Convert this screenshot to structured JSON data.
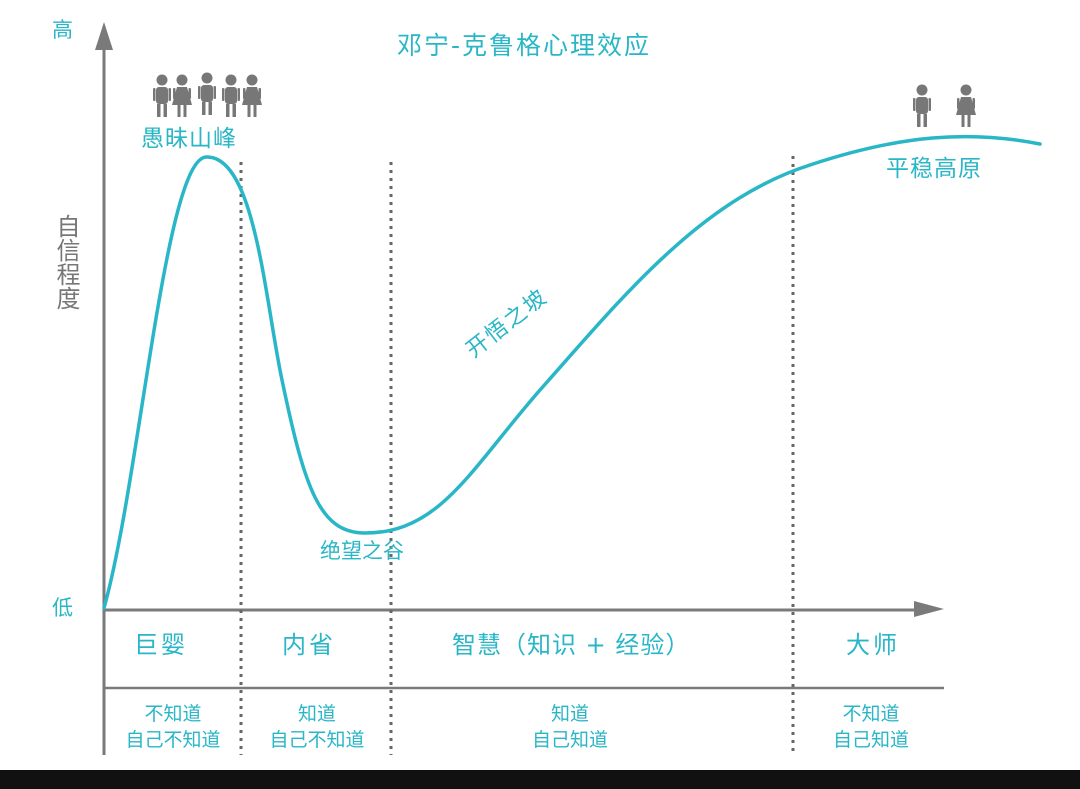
{
  "title": "邓宁-克鲁格心理效应",
  "axis": {
    "high": "高",
    "low": "低",
    "y_label": "自信程度"
  },
  "curve_labels": {
    "peak": "愚昧山峰",
    "valley": "绝望之谷",
    "slope": "开悟之坡",
    "plateau": "平稳高原"
  },
  "stages": [
    {
      "name": "巨婴",
      "awareness": [
        "不知道",
        "自己不知道"
      ]
    },
    {
      "name": "内省",
      "awareness": [
        "知道",
        "自己不知道"
      ]
    },
    {
      "name": "智慧（知识 + 经验）",
      "awareness": [
        "知道",
        "自己知道"
      ]
    },
    {
      "name": "大师",
      "awareness": [
        "不知道",
        "自己知道"
      ]
    }
  ],
  "colors": {
    "curve": "#29b6c7",
    "axis": "#7a7a7a",
    "label_teal": "#29b6c7",
    "label_gray": "#777777",
    "people_icon": "#777777"
  },
  "icons": {
    "crowd": "people-group-icon",
    "pair": "people-pair-icon"
  }
}
